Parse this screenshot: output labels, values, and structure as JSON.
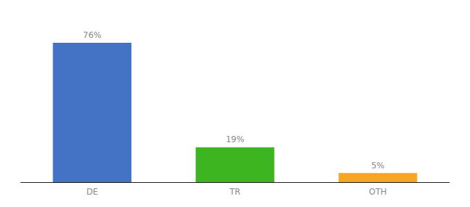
{
  "chart_data": {
    "type": "bar",
    "categories": [
      "DE",
      "TR",
      "OTH"
    ],
    "values": [
      76,
      19,
      5
    ],
    "value_labels": [
      "76%",
      "19%",
      "5%"
    ],
    "colors": [
      "#4472c4",
      "#3db520",
      "#f5a623"
    ],
    "ylim": [
      0,
      88
    ],
    "data_labels": true,
    "tick_labels": "x",
    "grid": false
  }
}
